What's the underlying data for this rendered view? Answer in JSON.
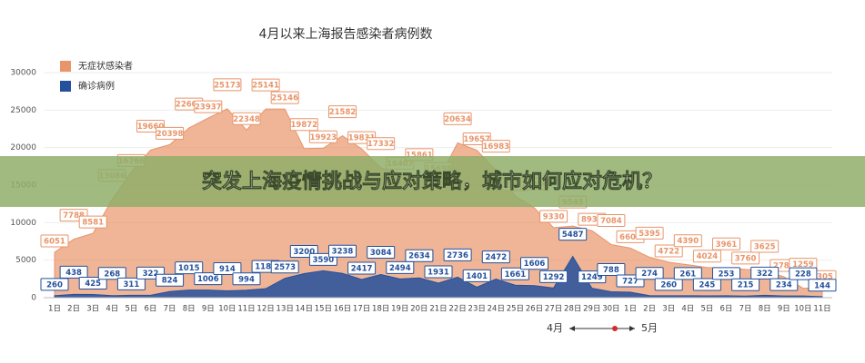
{
  "chart_data": {
    "type": "area",
    "title": "4月以来上海报告感染者病例数",
    "categories": [
      "1日",
      "2日",
      "3日",
      "4日",
      "5日",
      "6日",
      "7日",
      "8日",
      "9日",
      "10日",
      "11日",
      "12日",
      "13日",
      "14日",
      "15日",
      "16日",
      "17日",
      "18日",
      "19日",
      "20日",
      "21日",
      "22日",
      "23日",
      "24日",
      "25日",
      "26日",
      "27日",
      "28日",
      "29日",
      "30日",
      "1日",
      "2日",
      "3日",
      "4日",
      "5日",
      "6日",
      "7日",
      "8日",
      "9日",
      "10日",
      "11日"
    ],
    "series": [
      {
        "name": "无症状感染者",
        "color": "#e8956a",
        "values": [
          6051,
          7788,
          8581,
          13086,
          16766,
          19660,
          20398,
          22609,
          23937,
          25173,
          22348,
          25141,
          25146,
          19872,
          19923,
          21582,
          19831,
          17332,
          16407,
          15861,
          15698,
          20634,
          19657,
          16983,
          13562,
          11956,
          9330,
          9545,
          8932,
          7084,
          6606,
          5395,
          4722,
          4390,
          4024,
          3961,
          3760,
          3625,
          2780,
          1259,
          1305
        ]
      },
      {
        "name": "确诊病例",
        "color": "#24509c",
        "values": [
          260,
          438,
          425,
          268,
          311,
          322,
          824,
          1015,
          1006,
          914,
          994,
          1189,
          2573,
          3200,
          3590,
          3238,
          2417,
          3084,
          2494,
          2634,
          1931,
          2736,
          1401,
          2472,
          1661,
          1606,
          1292,
          5487,
          1249,
          788,
          727,
          274,
          260,
          261,
          245,
          253,
          215,
          322,
          234,
          228,
          144
        ]
      }
    ],
    "ylim": [
      0,
      30000
    ],
    "yticks": [
      0,
      5000,
      10000,
      15000,
      20000,
      25000,
      30000
    ],
    "grid": true,
    "annotations": [
      "4月",
      "5月"
    ],
    "banner": "突发上海疫情挑战与应对策略，城市如何应对危机？"
  }
}
